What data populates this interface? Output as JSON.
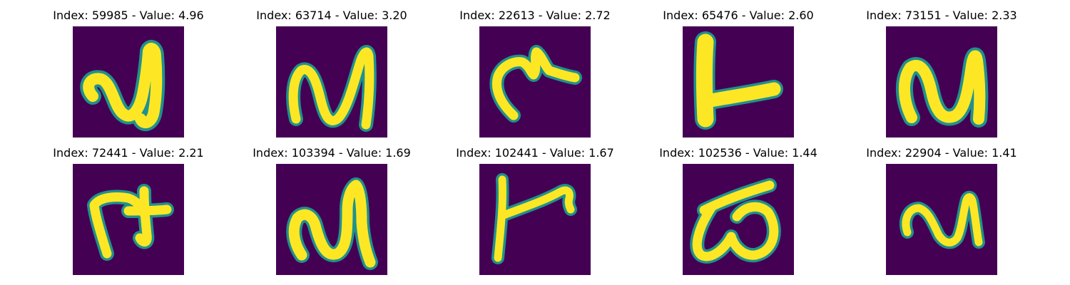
{
  "panels": [
    {
      "title": "Index: 59985 - Value: 4.96"
    },
    {
      "title": "Index: 63714 - Value: 3.20"
    },
    {
      "title": "Index: 22613 - Value: 2.72"
    },
    {
      "title": "Index: 65476 - Value: 2.60"
    },
    {
      "title": "Index: 73151 - Value: 2.33"
    },
    {
      "title": "Index: 72441 - Value: 2.21"
    },
    {
      "title": "Index: 103394 - Value: 1.69"
    },
    {
      "title": "Index: 102441 - Value: 1.67"
    },
    {
      "title": "Index: 102536 - Value: 1.44"
    },
    {
      "title": "Index: 22904 - Value: 1.41"
    }
  ],
  "colors": {
    "background": "#440154",
    "edge": "#21918c",
    "stroke": "#fde725"
  }
}
